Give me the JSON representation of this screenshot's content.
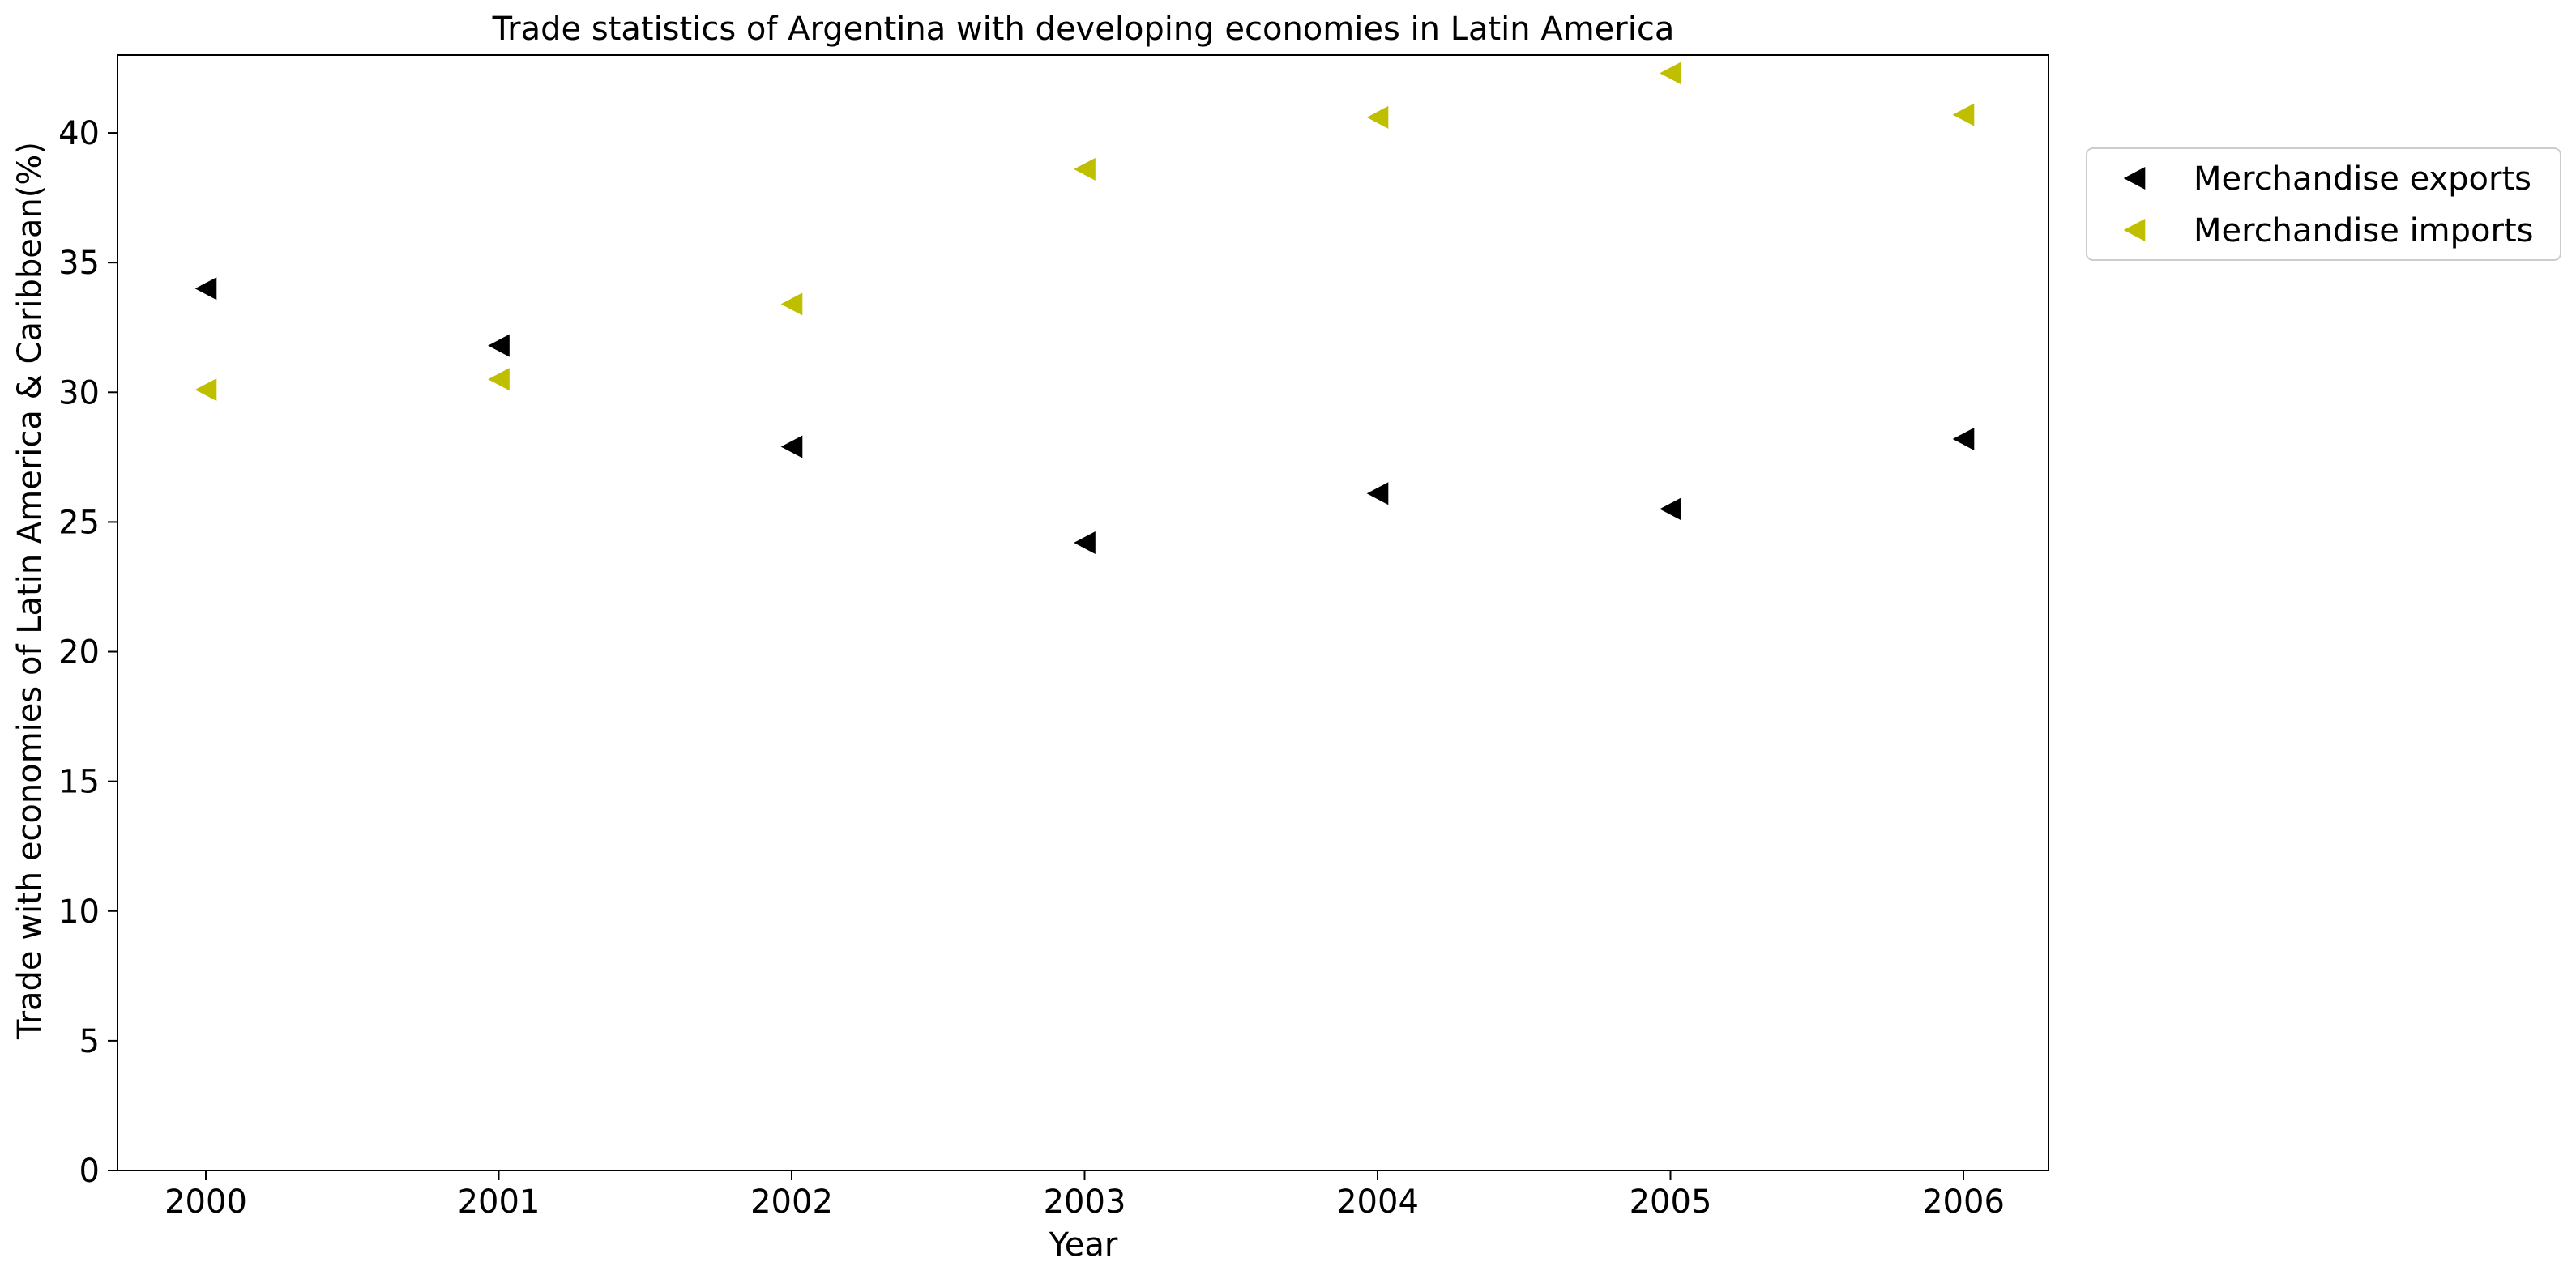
{
  "chart_data": {
    "type": "scatter",
    "title": "Trade statistics of Argentina with developing economies in Latin America",
    "xlabel": "Year",
    "ylabel": "Trade with economies of Latin America & Caribbean(%)",
    "x": [
      "2000",
      "2001",
      "2002",
      "2003",
      "2004",
      "2005",
      "2006"
    ],
    "ylim": [
      0,
      43
    ],
    "yticks": [
      0,
      5,
      10,
      15,
      20,
      25,
      30,
      35,
      40
    ],
    "grid": false,
    "legend_position": "outside-top-right",
    "marker": "triangle-left",
    "series": [
      {
        "name": "Merchandise exports",
        "color": "#000000",
        "values": [
          34.0,
          31.8,
          27.9,
          24.2,
          26.1,
          25.5,
          28.2
        ]
      },
      {
        "name": "Merchandise imports",
        "color": "#bfbf00",
        "values": [
          30.1,
          30.5,
          33.4,
          38.6,
          40.6,
          42.3,
          40.7
        ]
      }
    ]
  }
}
